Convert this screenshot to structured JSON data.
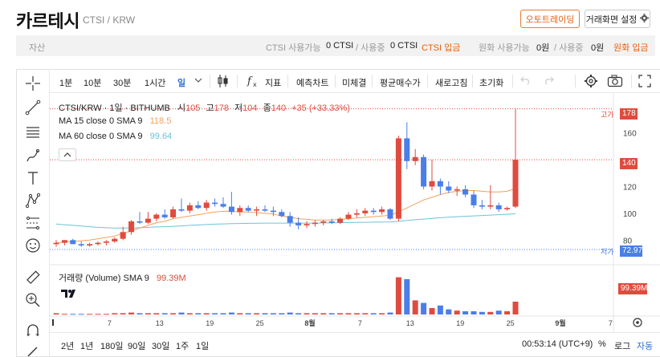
{
  "header": {
    "title": "카르테시",
    "subtitle": "CTSI / KRW",
    "auto_trade_label": "오토트레이딩",
    "layout_label": "거래화면 설정"
  },
  "assets": {
    "label": "자산",
    "ctsi_avail_label": "CTSI 사용가능",
    "ctsi_avail_value": "0 CTSI",
    "ctsi_inuse_label": "/ 사용중",
    "ctsi_inuse_value": "0 CTSI",
    "ctsi_deposit": "CTSI 입금",
    "krw_avail_label": "원화 사용가능",
    "krw_avail_value": "0원",
    "krw_inuse_label": "/ 사용중",
    "krw_inuse_value": "0원",
    "krw_deposit": "원화 입금"
  },
  "toolbar": {
    "intervals": [
      "1분",
      "10분",
      "30분",
      "1시간",
      "일"
    ],
    "active_interval": "일",
    "indicators": "지표",
    "forecast": "예측차트",
    "unsigned": "미체결",
    "avg_price": "평균매수가",
    "refresh": "새로고침",
    "reset": "초기화"
  },
  "legend": {
    "symbol": "CTSI/KRW · 1일 · BITHUMB",
    "open_label": "시",
    "open": "105",
    "high_label": "고",
    "high": "178",
    "low_label": "저",
    "low": "104",
    "close_label": "종",
    "close": "140",
    "change": "+35 (+33.33%)",
    "ma15_label": "MA 15 close 0 SMA 9",
    "ma15_value": "118.5",
    "ma60_label": "MA 60 close 0 SMA 9",
    "ma60_value": "99.64",
    "volume_label": "거래량 (Volume) SMA 9",
    "volume_value": "99.39M"
  },
  "price_axis": {
    "ticks": [
      "160",
      "120",
      "100",
      "80"
    ],
    "high_marker_label": "고가",
    "high_marker_value": "178",
    "current_value": "140",
    "low_marker_label": "저가",
    "low_marker_value": "72.97",
    "volume_tag": "99.39M"
  },
  "time_axis": {
    "labels": [
      "7",
      "13",
      "19",
      "25",
      "8월",
      "7",
      "13",
      "19",
      "25",
      "9월",
      "7"
    ]
  },
  "bottom_bar": {
    "ranges": [
      "2년",
      "1년",
      "180일",
      "90일",
      "30일",
      "1주",
      "1일"
    ],
    "clock": "00:53:14 (UTC+9)",
    "percent": "%",
    "log": "로그",
    "auto": "자동"
  },
  "colors": {
    "up": "#e04b3f",
    "down": "#4a7ee8",
    "accent": "#e8600c",
    "ma15": "#f2a15b",
    "ma60": "#6cc3d6"
  },
  "chart_data": {
    "type": "candlestick",
    "price_range": [
      70,
      185
    ],
    "candles": [
      {
        "o": 77,
        "h": 80,
        "l": 75,
        "c": 78
      },
      {
        "o": 78,
        "h": 80,
        "l": 76,
        "c": 80
      },
      {
        "o": 80,
        "h": 81,
        "l": 77,
        "c": 77
      },
      {
        "o": 77,
        "h": 79,
        "l": 75,
        "c": 76
      },
      {
        "o": 76,
        "h": 78,
        "l": 75,
        "c": 77
      },
      {
        "o": 77,
        "h": 79,
        "l": 76,
        "c": 78
      },
      {
        "o": 78,
        "h": 80,
        "l": 76,
        "c": 79
      },
      {
        "o": 79,
        "h": 82,
        "l": 78,
        "c": 81
      },
      {
        "o": 81,
        "h": 90,
        "l": 80,
        "c": 86
      },
      {
        "o": 86,
        "h": 95,
        "l": 84,
        "c": 94
      },
      {
        "o": 94,
        "h": 101,
        "l": 92,
        "c": 93
      },
      {
        "o": 93,
        "h": 101,
        "l": 92,
        "c": 96
      },
      {
        "o": 96,
        "h": 100,
        "l": 94,
        "c": 99
      },
      {
        "o": 99,
        "h": 103,
        "l": 96,
        "c": 97
      },
      {
        "o": 97,
        "h": 105,
        "l": 96,
        "c": 103
      },
      {
        "o": 103,
        "h": 111,
        "l": 101,
        "c": 102
      },
      {
        "o": 102,
        "h": 108,
        "l": 100,
        "c": 106
      },
      {
        "o": 106,
        "h": 109,
        "l": 103,
        "c": 104
      },
      {
        "o": 104,
        "h": 110,
        "l": 102,
        "c": 108
      },
      {
        "o": 108,
        "h": 111,
        "l": 105,
        "c": 107
      },
      {
        "o": 107,
        "h": 112,
        "l": 104,
        "c": 105
      },
      {
        "o": 105,
        "h": 116,
        "l": 99,
        "c": 101
      },
      {
        "o": 101,
        "h": 106,
        "l": 98,
        "c": 104
      },
      {
        "o": 104,
        "h": 106,
        "l": 101,
        "c": 102
      },
      {
        "o": 102,
        "h": 105,
        "l": 98,
        "c": 103
      },
      {
        "o": 103,
        "h": 106,
        "l": 101,
        "c": 102
      },
      {
        "o": 102,
        "h": 105,
        "l": 98,
        "c": 101
      },
      {
        "o": 101,
        "h": 103,
        "l": 97,
        "c": 98
      },
      {
        "o": 98,
        "h": 101,
        "l": 90,
        "c": 93
      },
      {
        "o": 93,
        "h": 97,
        "l": 88,
        "c": 91
      },
      {
        "o": 91,
        "h": 94,
        "l": 89,
        "c": 92
      },
      {
        "o": 92,
        "h": 95,
        "l": 90,
        "c": 93
      },
      {
        "o": 93,
        "h": 95,
        "l": 91,
        "c": 94
      },
      {
        "o": 94,
        "h": 96,
        "l": 92,
        "c": 93
      },
      {
        "o": 93,
        "h": 97,
        "l": 92,
        "c": 96
      },
      {
        "o": 96,
        "h": 101,
        "l": 95,
        "c": 99
      },
      {
        "o": 99,
        "h": 103,
        "l": 97,
        "c": 100
      },
      {
        "o": 100,
        "h": 104,
        "l": 98,
        "c": 102
      },
      {
        "o": 102,
        "h": 104,
        "l": 99,
        "c": 101
      },
      {
        "o": 101,
        "h": 105,
        "l": 99,
        "c": 103
      },
      {
        "o": 103,
        "h": 104,
        "l": 95,
        "c": 96
      },
      {
        "o": 96,
        "h": 158,
        "l": 94,
        "c": 156
      },
      {
        "o": 156,
        "h": 168,
        "l": 133,
        "c": 139
      },
      {
        "o": 139,
        "h": 148,
        "l": 136,
        "c": 142
      },
      {
        "o": 142,
        "h": 144,
        "l": 118,
        "c": 120
      },
      {
        "o": 120,
        "h": 140,
        "l": 117,
        "c": 124
      },
      {
        "o": 124,
        "h": 126,
        "l": 114,
        "c": 120
      },
      {
        "o": 120,
        "h": 124,
        "l": 115,
        "c": 117
      },
      {
        "o": 117,
        "h": 120,
        "l": 113,
        "c": 118
      },
      {
        "o": 118,
        "h": 121,
        "l": 112,
        "c": 114
      },
      {
        "o": 114,
        "h": 117,
        "l": 104,
        "c": 106
      },
      {
        "o": 106,
        "h": 110,
        "l": 103,
        "c": 105
      },
      {
        "o": 105,
        "h": 121,
        "l": 103,
        "c": 106
      },
      {
        "o": 106,
        "h": 108,
        "l": 101,
        "c": 103
      },
      {
        "o": 103,
        "h": 105,
        "l": 102,
        "c": 104
      },
      {
        "o": 105,
        "h": 178,
        "l": 104,
        "c": 140
      }
    ],
    "volume": [
      2,
      1,
      1,
      1,
      1,
      1,
      1,
      2,
      2,
      3,
      2,
      2,
      2,
      2,
      2,
      3,
      2,
      2,
      2,
      2,
      2,
      3,
      2,
      2,
      2,
      2,
      2,
      2,
      3,
      2,
      2,
      2,
      2,
      2,
      2,
      2,
      2,
      2,
      2,
      2,
      3,
      58,
      55,
      22,
      18,
      10,
      14,
      8,
      6,
      5,
      5,
      4,
      4,
      6,
      5,
      20
    ],
    "ma15": [
      78,
      78.5,
      79,
      79.5,
      80,
      81,
      82,
      83,
      85,
      87,
      89,
      91,
      93,
      94,
      96,
      97,
      98,
      99,
      100,
      101,
      101.5,
      101.5,
      101,
      101,
      100.5,
      100,
      99.5,
      98,
      97,
      96,
      95.5,
      95,
      95,
      95,
      95.5,
      96,
      96.5,
      97,
      97.5,
      98,
      98.5,
      101,
      104,
      107,
      110,
      112,
      114,
      115.5,
      116.5,
      117,
      117,
      116.5,
      116,
      116,
      116.5,
      118.5
    ],
    "ma60": [
      92,
      91.5,
      91,
      90.5,
      90,
      89.5,
      89.2,
      89,
      89,
      89,
      89.2,
      89.5,
      89.8,
      90,
      90.3,
      90.6,
      91,
      91.3,
      91.6,
      91.9,
      92.1,
      92.3,
      92.4,
      92.5,
      92.6,
      92.7,
      92.7,
      92.7,
      92.7,
      92.7,
      92.7,
      92.7,
      92.8,
      92.9,
      93,
      93.1,
      93.2,
      93.3,
      93.4,
      93.5,
      93.6,
      94,
      94.6,
      95.2,
      95.7,
      96.2,
      96.7,
      97.1,
      97.5,
      97.8,
      98.1,
      98.4,
      98.7,
      99,
      99.3,
      99.64
    ]
  }
}
